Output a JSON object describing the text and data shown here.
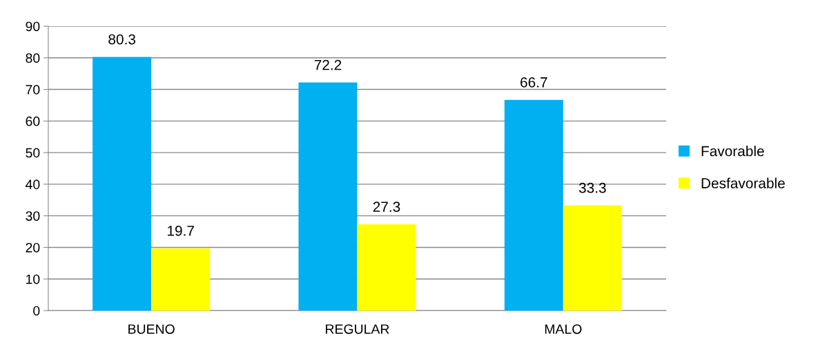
{
  "chart_data": {
    "type": "bar",
    "categories": [
      "BUENO",
      "REGULAR",
      "MALO"
    ],
    "series": [
      {
        "name": "Favorable",
        "color": "#00b0f0",
        "values": [
          80.3,
          72.2,
          66.7
        ]
      },
      {
        "name": "Desfavorable",
        "color": "#ffff00",
        "values": [
          19.7,
          27.3,
          33.3
        ]
      }
    ],
    "ylim": [
      0,
      90
    ],
    "yticks": [
      0,
      10,
      20,
      30,
      40,
      50,
      60,
      70,
      80,
      90
    ],
    "grid": "y",
    "legend": "right",
    "data_labels": true
  }
}
